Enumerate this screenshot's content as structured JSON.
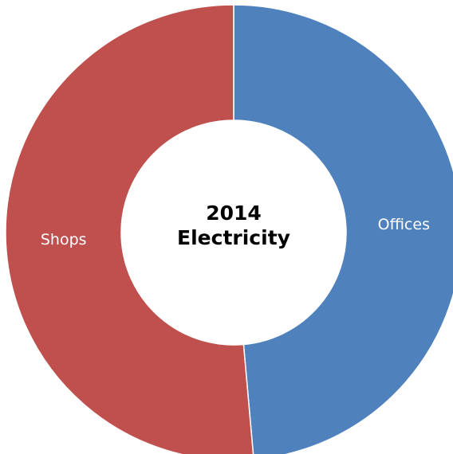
{
  "chart_data": {
    "type": "donut",
    "title": "2014 Electricity",
    "categories": [
      "Offices",
      "Shops"
    ],
    "values": [
      48.6,
      51.4
    ],
    "colors": [
      "#4f81bd",
      "#c0504d"
    ]
  }
}
